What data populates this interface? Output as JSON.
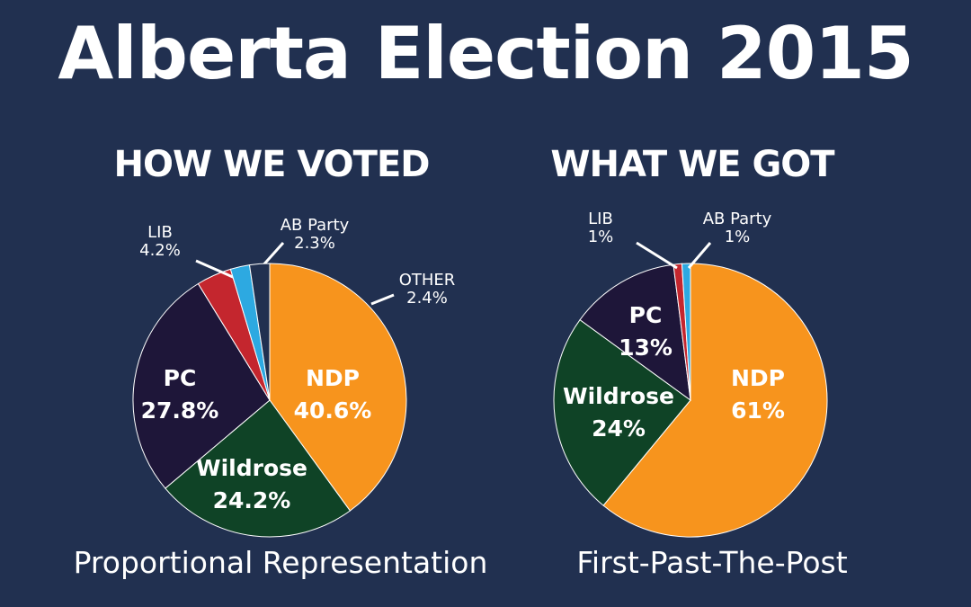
{
  "title": "Alberta Election 2015",
  "colors": {
    "background": "#213050",
    "NDP": "#F7941D",
    "Wildrose": "#0F4326",
    "PC": "#1E1639",
    "LIB": "#C4262E",
    "AB Party": "#2DA9E1",
    "OTHER": "#213050"
  },
  "chart_data": [
    {
      "type": "pie",
      "title": "HOW WE VOTED",
      "caption": "Proportional Representation",
      "labels": [
        "NDP",
        "Wildrose",
        "PC",
        "LIB",
        "AB Party",
        "OTHER"
      ],
      "values": [
        40.6,
        24.2,
        27.8,
        4.2,
        2.3,
        2.4
      ],
      "value_labels": [
        "40.6%",
        "24.2%",
        "27.8%",
        "4.2%",
        "2.3%",
        "2.4%"
      ]
    },
    {
      "type": "pie",
      "title": "WHAT WE GOT",
      "caption": "First-Past-The-Post",
      "labels": [
        "NDP",
        "Wildrose",
        "PC",
        "LIB",
        "AB Party"
      ],
      "values": [
        61,
        24,
        13,
        1,
        1
      ],
      "value_labels": [
        "61%",
        "24%",
        "13%",
        "1%",
        "1%"
      ]
    }
  ]
}
